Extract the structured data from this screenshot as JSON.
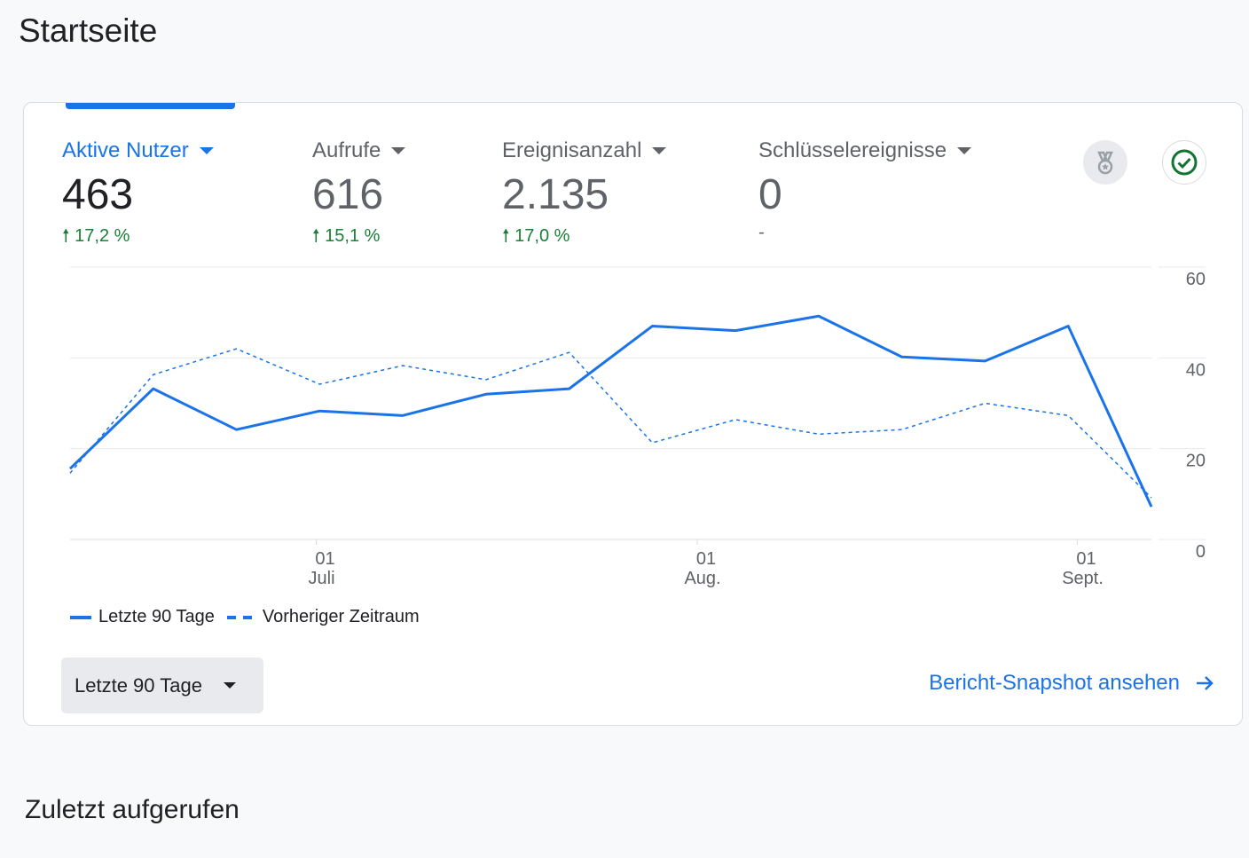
{
  "page_title": "Startseite",
  "metrics": [
    {
      "label": "Aktive Nutzer",
      "value": "463",
      "delta": "17,2 %",
      "active": true
    },
    {
      "label": "Aufrufe",
      "value": "616",
      "delta": "15,1 %"
    },
    {
      "label": "Ereignisanzahl",
      "value": "2.135",
      "delta": "17,0 %"
    },
    {
      "label": "Schlüsselereignisse",
      "value": "0",
      "delta": "-"
    }
  ],
  "icons": {
    "insights": "medal-icon",
    "status": "check-circle-icon"
  },
  "colors": {
    "accent": "#1a73e8",
    "positive": "#188038"
  },
  "chart_data": {
    "type": "line",
    "x": [
      0,
      1,
      2,
      3,
      4,
      5,
      6,
      7,
      8,
      9,
      10,
      11,
      12,
      13
    ],
    "ylim": [
      0,
      60
    ],
    "yticks": [
      0,
      20,
      40,
      60
    ],
    "xticks": [
      {
        "pos": 2.96,
        "day": "01",
        "month": "Juli"
      },
      {
        "pos": 7.54,
        "day": "01",
        "month": "Aug."
      },
      {
        "pos": 12.11,
        "day": "01",
        "month": "Sept."
      }
    ],
    "series": [
      {
        "name": "Letzte 90 Tage",
        "style": "solid",
        "values": [
          15.6,
          33.2,
          24.2,
          28.3,
          27.3,
          32,
          33.2,
          47,
          46,
          49.2,
          40.2,
          39.3,
          47,
          7.2
        ]
      },
      {
        "name": "Vorheriger Zeitraum",
        "style": "dashed",
        "values": [
          14.6,
          36.3,
          42,
          34.2,
          38.3,
          35.2,
          41.2,
          21.3,
          26.4,
          23.2,
          24.2,
          30,
          27.3,
          9.2
        ]
      }
    ],
    "grid": true,
    "legend": "bottom-left"
  },
  "legend": {
    "current": "Letzte 90 Tage",
    "previous": "Vorheriger Zeitraum"
  },
  "range_select": "Letzte 90 Tage",
  "snapshot_link": "Bericht-Snapshot ansehen",
  "recent_heading": "Zuletzt aufgerufen"
}
